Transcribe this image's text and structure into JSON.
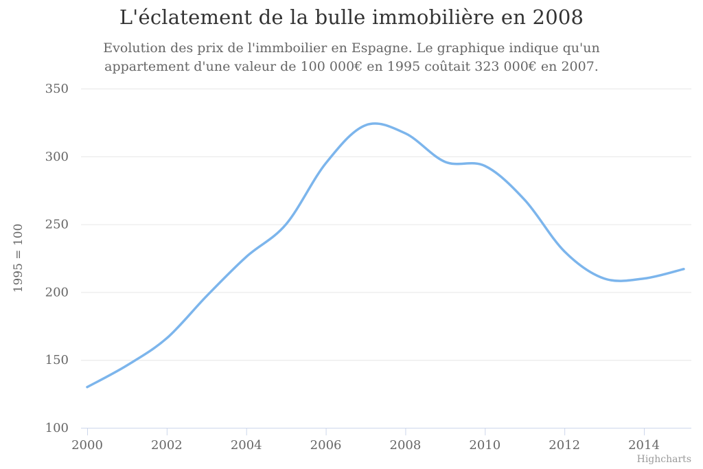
{
  "chart_data": {
    "type": "spline",
    "title": "L'éclatement de la bulle immobilière en 2008",
    "subtitle_lines": [
      "Evolution des prix de l'immboilier en Espagne. Le graphique indique qu'un",
      "appartement d'une valeur de 100 000€ en 1995 coûtait 323 000€ en 2007."
    ],
    "ylabel": "1995 = 100",
    "x": [
      2000,
      2001,
      2002,
      2003,
      2004,
      2005,
      2006,
      2007,
      2008,
      2009,
      2010,
      2011,
      2012,
      2013,
      2014,
      2015
    ],
    "values": [
      130,
      146,
      166,
      197,
      226,
      250,
      295,
      323,
      317,
      296,
      293,
      268,
      230,
      210,
      210,
      217
    ],
    "xticks": [
      2000,
      2002,
      2004,
      2006,
      2008,
      2010,
      2012,
      2014
    ],
    "yticks": [
      100,
      150,
      200,
      250,
      300,
      350
    ],
    "xlim": [
      2000,
      2015
    ],
    "ylim": [
      100,
      350
    ],
    "grid": true,
    "legend": false,
    "credits": "Highcharts",
    "colors": {
      "line": "#7cb5ec",
      "grid": "#e6e6e6",
      "axis": "#ccd6eb",
      "labels": "#666666",
      "title": "#333333",
      "subtitle": "#666666",
      "credits": "#999999"
    }
  }
}
